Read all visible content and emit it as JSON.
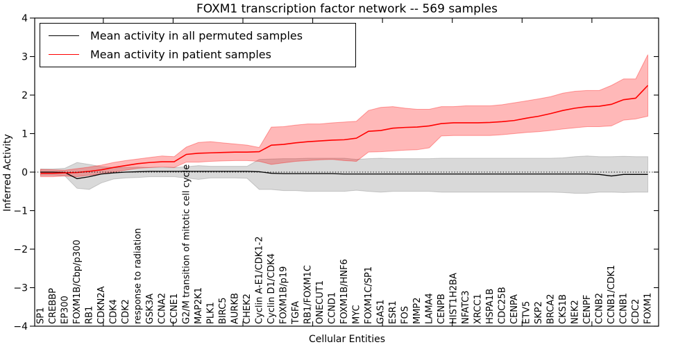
{
  "title": "FOXM1 transcription factor network -- 569 samples",
  "axes": {
    "ylabel": "Inferred Activity",
    "xlabel": "Cellular Entities",
    "ytick_labels": [
      "4",
      "3",
      "2",
      "1",
      "0",
      "−1",
      "−2",
      "−3",
      "−4"
    ]
  },
  "legend": {
    "items": [
      {
        "label": "Mean activity in all permuted samples",
        "color": "#000000"
      },
      {
        "label": "Mean activity in patient samples",
        "color": "#ff0000"
      }
    ]
  },
  "colors": {
    "permuted_line": "#000000",
    "permuted_band": "rgba(128,128,128,0.30)",
    "patient_line": "#ff0000",
    "patient_band": "rgba(255,0,0,0.28)",
    "zero_line": "#000000",
    "frame": "#000000"
  },
  "chart_data": {
    "type": "line",
    "title": "FOXM1 transcription factor network -- 569 samples",
    "xlabel": "Cellular Entities",
    "ylabel": "Inferred Activity",
    "ylim": [
      -4,
      4
    ],
    "yticks": [
      4,
      3,
      2,
      1,
      0,
      -1,
      -2,
      -3,
      -4
    ],
    "grid": false,
    "legend_position": "upper left",
    "zero_reference_line": 0,
    "categories": [
      "SP1",
      "CREBBP",
      "EP300",
      "FOXM1B/Cbp/p300",
      "RB1",
      "CDKN2A",
      "CDK4",
      "CDK2",
      "response to radiation",
      "GSK3A",
      "CCNA2",
      "CCNE1",
      "G2/M transition of mitotic cell cycle",
      "MAP2K1",
      "PLK1",
      "BIRC5",
      "AURKB",
      "CHEK2",
      "Cyclin A-E1/CDK1-2",
      "Cyclin D1/CDK4",
      "FOXM1B/p19",
      "TGFA",
      "RB1/FOXM1C",
      "ONECUT1",
      "CCND1",
      "FOXM1B/HNF6",
      "MYC",
      "FOXM1C/SP1",
      "GAS1",
      "ESR1",
      "FOS",
      "MMP2",
      "LAMA4",
      "CENPB",
      "HIST1H2BA",
      "NFATC3",
      "XRCC1",
      "HSPA1B",
      "CDC25B",
      "CENPA",
      "ETV5",
      "SKP2",
      "BRCA2",
      "CKS1B",
      "NEK2",
      "CENPF",
      "CCNB2",
      "CCNB1/CDK1",
      "CCNB1",
      "CDC2",
      "FOXM1"
    ],
    "series": [
      {
        "name": "Mean activity in all permuted samples",
        "color": "#000000",
        "values": [
          0.0,
          0.0,
          -0.01,
          -0.17,
          -0.12,
          -0.05,
          -0.02,
          0.0,
          0.01,
          0.02,
          0.02,
          0.02,
          0.02,
          0.02,
          0.02,
          0.02,
          0.02,
          0.02,
          0.01,
          -0.03,
          -0.04,
          -0.04,
          -0.04,
          -0.04,
          -0.04,
          -0.05,
          -0.05,
          -0.05,
          -0.05,
          -0.05,
          -0.05,
          -0.05,
          -0.05,
          -0.05,
          -0.05,
          -0.05,
          -0.05,
          -0.05,
          -0.05,
          -0.05,
          -0.05,
          -0.05,
          -0.05,
          -0.05,
          -0.05,
          -0.05,
          -0.06,
          -0.1,
          -0.06,
          -0.06,
          -0.06
        ],
        "band_upper": [
          0.08,
          0.08,
          0.1,
          0.25,
          0.2,
          0.14,
          0.12,
          0.12,
          0.13,
          0.12,
          0.12,
          0.12,
          0.14,
          0.17,
          0.15,
          0.15,
          0.15,
          0.15,
          0.33,
          0.34,
          0.35,
          0.35,
          0.36,
          0.36,
          0.36,
          0.36,
          0.33,
          0.35,
          0.36,
          0.35,
          0.35,
          0.35,
          0.35,
          0.36,
          0.36,
          0.36,
          0.36,
          0.36,
          0.36,
          0.36,
          0.36,
          0.36,
          0.36,
          0.37,
          0.4,
          0.42,
          0.4,
          0.4,
          0.41,
          0.4,
          0.4
        ],
        "band_lower": [
          -0.08,
          -0.08,
          -0.1,
          -0.42,
          -0.45,
          -0.28,
          -0.18,
          -0.15,
          -0.14,
          -0.12,
          -0.12,
          -0.12,
          -0.15,
          -0.19,
          -0.15,
          -0.15,
          -0.15,
          -0.16,
          -0.45,
          -0.45,
          -0.48,
          -0.48,
          -0.5,
          -0.5,
          -0.5,
          -0.5,
          -0.47,
          -0.5,
          -0.52,
          -0.5,
          -0.5,
          -0.5,
          -0.5,
          -0.52,
          -0.52,
          -0.52,
          -0.52,
          -0.52,
          -0.52,
          -0.52,
          -0.52,
          -0.52,
          -0.52,
          -0.53,
          -0.55,
          -0.55,
          -0.52,
          -0.52,
          -0.53,
          -0.52,
          -0.52
        ]
      },
      {
        "name": "Mean activity in patient samples",
        "color": "#ff0000",
        "values": [
          -0.03,
          -0.03,
          -0.02,
          -0.01,
          0.02,
          0.06,
          0.12,
          0.17,
          0.22,
          0.25,
          0.27,
          0.27,
          0.46,
          0.49,
          0.5,
          0.51,
          0.52,
          0.52,
          0.53,
          0.7,
          0.72,
          0.76,
          0.79,
          0.81,
          0.83,
          0.84,
          0.88,
          1.06,
          1.08,
          1.14,
          1.16,
          1.17,
          1.2,
          1.26,
          1.28,
          1.28,
          1.28,
          1.29,
          1.31,
          1.34,
          1.4,
          1.45,
          1.52,
          1.6,
          1.66,
          1.7,
          1.71,
          1.76,
          1.88,
          1.92,
          2.25
        ],
        "band_upper": [
          0.07,
          0.06,
          0.05,
          0.09,
          0.13,
          0.18,
          0.25,
          0.3,
          0.34,
          0.38,
          0.42,
          0.4,
          0.65,
          0.77,
          0.79,
          0.76,
          0.73,
          0.7,
          0.64,
          1.17,
          1.18,
          1.22,
          1.25,
          1.25,
          1.28,
          1.3,
          1.32,
          1.6,
          1.68,
          1.7,
          1.66,
          1.63,
          1.63,
          1.7,
          1.7,
          1.72,
          1.72,
          1.72,
          1.75,
          1.8,
          1.85,
          1.9,
          1.96,
          2.05,
          2.1,
          2.12,
          2.12,
          2.25,
          2.42,
          2.42,
          3.05
        ],
        "band_lower": [
          -0.12,
          -0.12,
          -0.1,
          -0.12,
          -0.08,
          -0.05,
          0.0,
          0.05,
          0.1,
          0.12,
          0.14,
          0.12,
          0.26,
          0.26,
          0.28,
          0.29,
          0.3,
          0.3,
          0.28,
          0.2,
          0.24,
          0.28,
          0.3,
          0.32,
          0.33,
          0.3,
          0.28,
          0.52,
          0.53,
          0.55,
          0.57,
          0.58,
          0.63,
          0.94,
          0.95,
          0.95,
          0.95,
          0.95,
          0.97,
          1.0,
          1.03,
          1.05,
          1.08,
          1.12,
          1.15,
          1.18,
          1.18,
          1.2,
          1.35,
          1.38,
          1.45
        ]
      }
    ]
  }
}
